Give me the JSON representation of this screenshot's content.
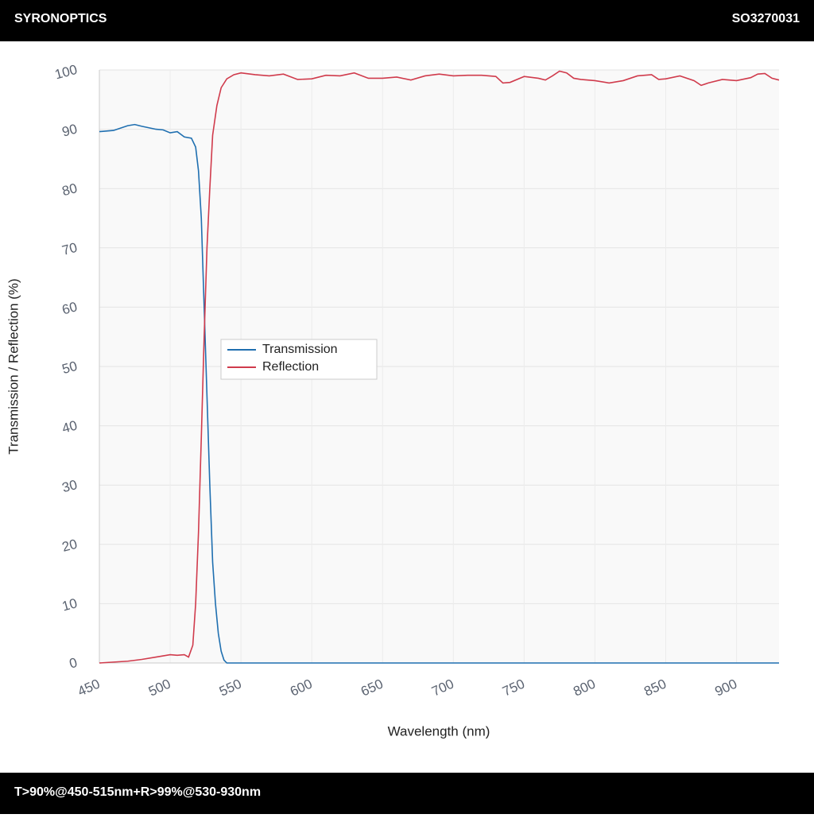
{
  "header": {
    "brand": "SYRONOPTICS",
    "code": "SO3270031"
  },
  "footer": {
    "text": "T>90%@450-515nm+R>99%@530-930nm"
  },
  "chart_data": {
    "type": "line",
    "xlabel": "Wavelength (nm)",
    "ylabel": "Transmission / Reflection (%)",
    "xlim": [
      450,
      930
    ],
    "ylim": [
      0,
      100
    ],
    "xticks": [
      450,
      500,
      550,
      600,
      650,
      700,
      750,
      800,
      850,
      900
    ],
    "yticks": [
      0,
      10,
      20,
      30,
      40,
      50,
      60,
      70,
      80,
      90,
      100
    ],
    "grid": true,
    "legend": "center",
    "series": [
      {
        "name": "Transmission",
        "color": "#1f6fb0",
        "x": [
          450,
          460,
          470,
          475,
          480,
          490,
          495,
          500,
          505,
          510,
          515,
          518,
          520,
          522,
          524,
          526,
          528,
          530,
          532,
          534,
          536,
          538,
          540,
          930
        ],
        "values": [
          89.6,
          89.8,
          90.6,
          90.8,
          90.5,
          90.0,
          89.9,
          89.4,
          89.6,
          88.7,
          88.5,
          87,
          83,
          75,
          60,
          45,
          30,
          17,
          10,
          5,
          2,
          0.5,
          0,
          0
        ]
      },
      {
        "name": "Reflection",
        "color": "#d03b4c",
        "x": [
          450,
          470,
          480,
          490,
          500,
          505,
          510,
          513,
          516,
          518,
          520,
          522,
          524,
          526,
          528,
          530,
          533,
          536,
          540,
          545,
          550,
          560,
          570,
          580,
          590,
          600,
          610,
          620,
          630,
          640,
          650,
          660,
          670,
          680,
          690,
          700,
          710,
          720,
          730,
          735,
          740,
          750,
          760,
          765,
          770,
          775,
          780,
          785,
          790,
          800,
          810,
          820,
          830,
          840,
          845,
          850,
          860,
          870,
          875,
          880,
          890,
          900,
          910,
          915,
          920,
          925,
          930
        ],
        "values": [
          0,
          0.3,
          0.6,
          1,
          1.4,
          1.3,
          1.4,
          1.0,
          3,
          10,
          22,
          38,
          55,
          70,
          80,
          89,
          94,
          97,
          98.5,
          99.2,
          99.5,
          99.2,
          99.0,
          99.3,
          98.4,
          98.5,
          99.1,
          99.0,
          99.5,
          98.6,
          98.6,
          98.8,
          98.3,
          99.0,
          99.3,
          99.0,
          99.1,
          99.1,
          98.9,
          97.8,
          97.9,
          98.9,
          98.6,
          98.3,
          99.0,
          99.8,
          99.5,
          98.6,
          98.4,
          98.2,
          97.8,
          98.2,
          99.0,
          99.2,
          98.4,
          98.5,
          99.0,
          98.2,
          97.4,
          97.8,
          98.4,
          98.2,
          98.7,
          99.3,
          99.4,
          98.6,
          98.3
        ]
      }
    ]
  }
}
